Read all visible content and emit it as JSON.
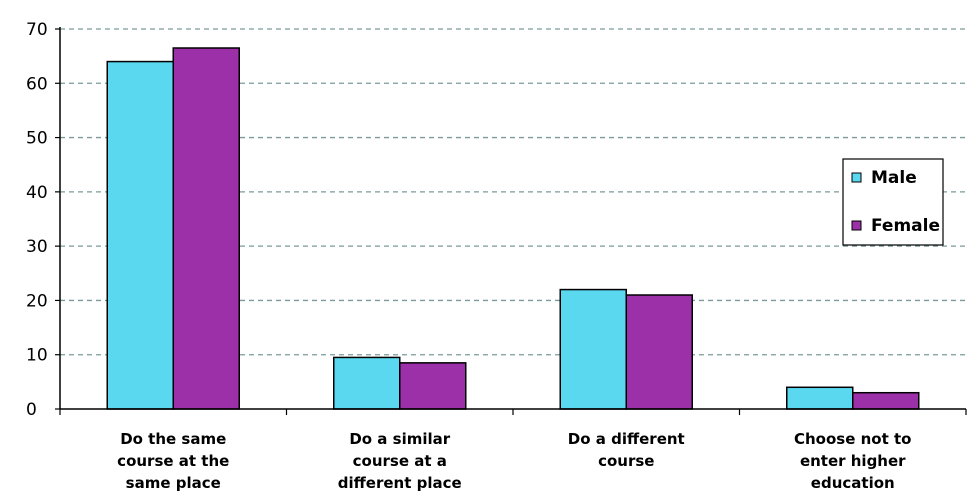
{
  "chart_data": {
    "type": "bar",
    "categories": [
      "Do the same course at the same place",
      "Do a similar course at a different place",
      "Do a different course",
      "Choose not to enter higher education"
    ],
    "category_lines": [
      [
        "Do the same",
        "course at the",
        "same place"
      ],
      [
        "Do a similar",
        "course at a",
        "different place"
      ],
      [
        "Do a different",
        "course"
      ],
      [
        "Choose not to",
        "enter higher",
        "education"
      ]
    ],
    "series": [
      {
        "name": "Male",
        "color": "#5ad8f0",
        "values": [
          64,
          9.5,
          22,
          4
        ]
      },
      {
        "name": "Female",
        "color": "#9b30a8",
        "values": [
          66.5,
          8.5,
          21,
          3
        ]
      }
    ],
    "ylim": [
      0,
      70
    ],
    "yticks": [
      "0",
      "10",
      "20",
      "30",
      "40",
      "50",
      "60",
      "70"
    ],
    "grid": true,
    "legend_position": "right"
  }
}
